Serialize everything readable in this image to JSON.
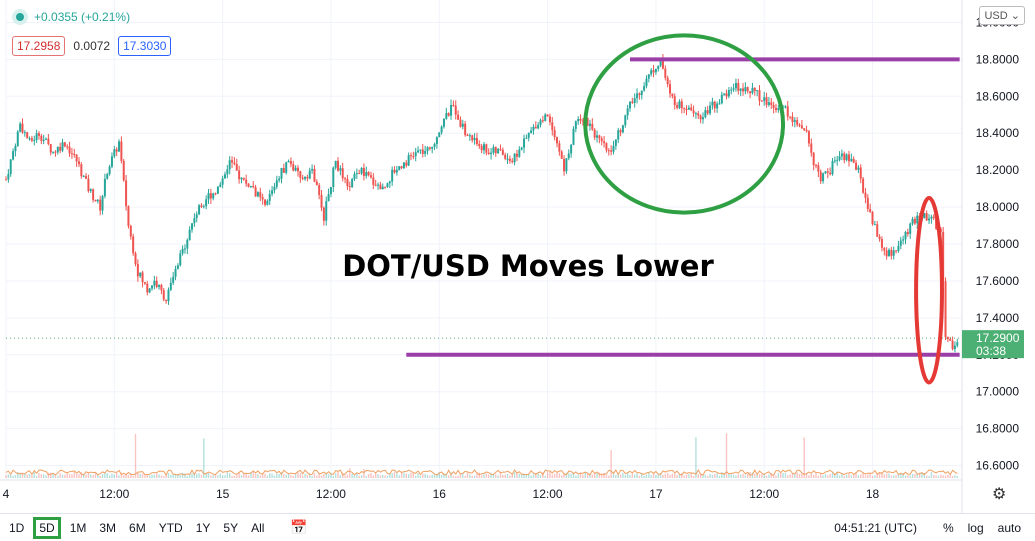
{
  "header": {
    "change": "+0.0355 (+0.21%)",
    "bid": "17.2958",
    "spread": "0.0072",
    "ask": "17.3030",
    "currency": "USD"
  },
  "bottom_bar": {
    "ranges": [
      "1D",
      "5D",
      "1M",
      "3M",
      "6M",
      "YTD",
      "1Y",
      "5Y",
      "All"
    ],
    "active_range": "5D",
    "clock": "04:51:21 (UTC)",
    "pct": "%",
    "log": "log",
    "auto": "auto"
  },
  "icons": {
    "calendar": "calendar-goto-icon",
    "settings": "gear-icon",
    "live": "live-dot-icon"
  },
  "colors": {
    "up": "#26a69a",
    "down": "#ef5350",
    "level_line": "#9b3fa8",
    "circle_green": "#2ea043",
    "circle_red": "#e53935",
    "price_tag": "#4caf73"
  },
  "chart_data": {
    "type": "candlestick",
    "title": "DOT/USD Moves Lower",
    "ylim": [
      16.5,
      19.1
    ],
    "yticks": [
      "19.0000",
      "18.8000",
      "18.6000",
      "18.4000",
      "18.2000",
      "18.0000",
      "17.8000",
      "17.6000",
      "17.4000",
      "17.2000",
      "17.0000",
      "16.8000",
      "16.6000"
    ],
    "xticks": [
      "4",
      "12:00",
      "15",
      "12:00",
      "16",
      "12:00",
      "17",
      "12:00",
      "18"
    ],
    "current_price": "17.2900",
    "countdown": "03:38",
    "close_path": [
      [
        0,
        18.15
      ],
      [
        0.2,
        18.25
      ],
      [
        0.6,
        18.45
      ],
      [
        1.0,
        18.35
      ],
      [
        1.4,
        18.4
      ],
      [
        2.0,
        18.3
      ],
      [
        2.5,
        18.35
      ],
      [
        3.0,
        18.25
      ],
      [
        3.5,
        18.1
      ],
      [
        4.0,
        18.0
      ],
      [
        4.3,
        18.2
      ],
      [
        4.8,
        18.35
      ],
      [
        5.2,
        17.9
      ],
      [
        5.6,
        17.65
      ],
      [
        6.0,
        17.55
      ],
      [
        6.3,
        17.6
      ],
      [
        6.8,
        17.5
      ],
      [
        7.2,
        17.65
      ],
      [
        7.6,
        17.8
      ],
      [
        8.0,
        17.95
      ],
      [
        8.5,
        18.05
      ],
      [
        9.0,
        18.1
      ],
      [
        9.5,
        18.25
      ],
      [
        10.0,
        18.15
      ],
      [
        10.5,
        18.1
      ],
      [
        11.0,
        18.0
      ],
      [
        11.5,
        18.15
      ],
      [
        12.0,
        18.25
      ],
      [
        12.5,
        18.15
      ],
      [
        13.0,
        18.2
      ],
      [
        13.5,
        17.95
      ],
      [
        14.0,
        18.25
      ],
      [
        14.5,
        18.1
      ],
      [
        15.0,
        18.2
      ],
      [
        15.5,
        18.15
      ],
      [
        16.0,
        18.1
      ],
      [
        16.5,
        18.2
      ],
      [
        17.0,
        18.25
      ],
      [
        17.5,
        18.3
      ],
      [
        18.0,
        18.3
      ],
      [
        18.5,
        18.45
      ],
      [
        19.0,
        18.55
      ],
      [
        19.5,
        18.4
      ],
      [
        20.0,
        18.35
      ],
      [
        20.5,
        18.3
      ],
      [
        21.0,
        18.3
      ],
      [
        21.5,
        18.25
      ],
      [
        22.0,
        18.35
      ],
      [
        22.5,
        18.45
      ],
      [
        23.0,
        18.5
      ],
      [
        23.3,
        18.4
      ],
      [
        23.7,
        18.2
      ],
      [
        24.0,
        18.35
      ],
      [
        24.3,
        18.5
      ],
      [
        24.8,
        18.45
      ],
      [
        25.2,
        18.35
      ],
      [
        25.6,
        18.3
      ],
      [
        26.0,
        18.4
      ],
      [
        26.5,
        18.55
      ],
      [
        27.0,
        18.65
      ],
      [
        27.5,
        18.75
      ],
      [
        27.8,
        18.8
      ],
      [
        28.2,
        18.6
      ],
      [
        28.6,
        18.55
      ],
      [
        29.0,
        18.55
      ],
      [
        29.5,
        18.5
      ],
      [
        30.0,
        18.55
      ],
      [
        30.5,
        18.6
      ],
      [
        31.0,
        18.65
      ],
      [
        31.5,
        18.65
      ],
      [
        32.0,
        18.6
      ],
      [
        32.5,
        18.55
      ],
      [
        33.0,
        18.55
      ],
      [
        33.5,
        18.45
      ],
      [
        34.0,
        18.4
      ],
      [
        34.3,
        18.25
      ],
      [
        34.6,
        18.15
      ],
      [
        35.0,
        18.2
      ],
      [
        35.4,
        18.3
      ],
      [
        35.8,
        18.25
      ],
      [
        36.2,
        18.2
      ],
      [
        36.6,
        18.0
      ],
      [
        37.0,
        17.85
      ],
      [
        37.3,
        17.75
      ],
      [
        37.6,
        17.75
      ],
      [
        38.0,
        17.8
      ],
      [
        38.4,
        17.9
      ],
      [
        38.8,
        17.95
      ],
      [
        39.2,
        17.95
      ],
      [
        39.5,
        17.9
      ],
      [
        39.7,
        17.85
      ],
      [
        39.9,
        17.3
      ],
      [
        40.2,
        17.25
      ],
      [
        40.5,
        17.29
      ]
    ],
    "levels": [
      {
        "y": 18.8,
        "x_start": 26.5,
        "x_end": 40.5
      },
      {
        "y": 17.2,
        "x_start": 17.0,
        "x_end": 40.5
      }
    ],
    "annotations": [
      {
        "shape": "ellipse",
        "color": "green",
        "cx": 28.8,
        "cy": 18.45,
        "rx": 4.2,
        "ry": 0.48
      },
      {
        "shape": "ellipse",
        "color": "red",
        "cx": 39.2,
        "cy": 17.55,
        "rx": 0.55,
        "ry": 0.5
      }
    ]
  }
}
